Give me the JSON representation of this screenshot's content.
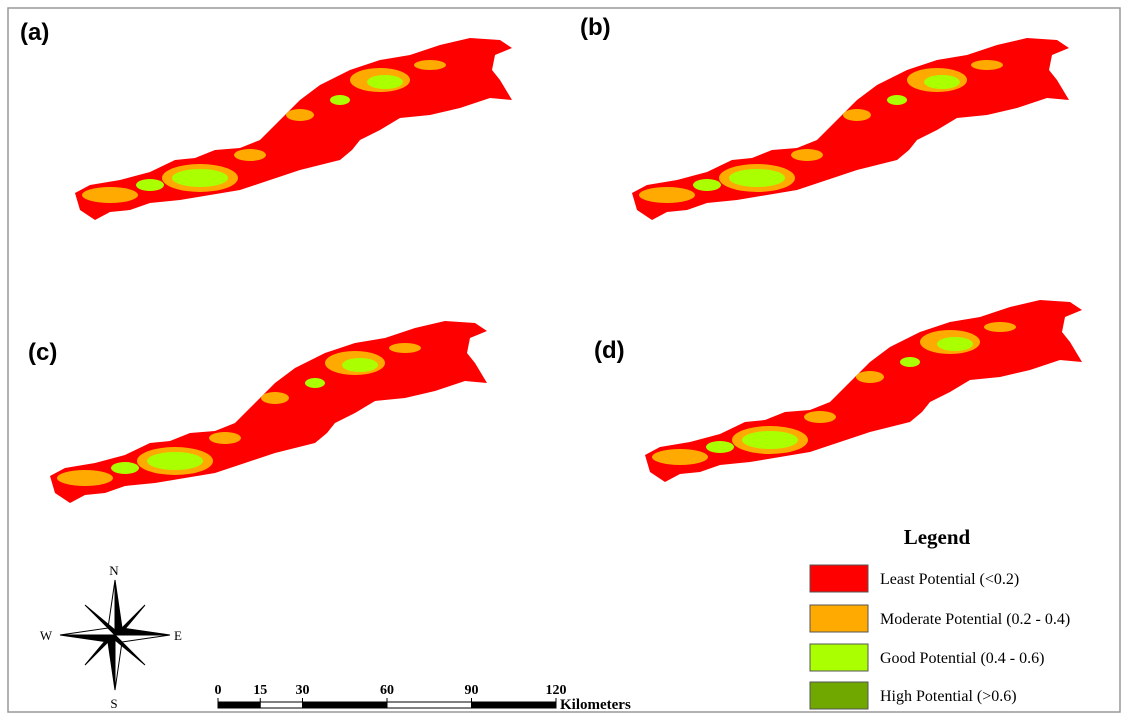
{
  "panels": [
    {
      "label": "(a)"
    },
    {
      "label": "(b)"
    },
    {
      "label": "(c)"
    },
    {
      "label": "(d)"
    }
  ],
  "legend": {
    "title": "Legend",
    "items": [
      {
        "name": "Least Potential (<0.2)",
        "color": "#ff0000"
      },
      {
        "name": "Moderate Potential (0.2 - 0.4)",
        "color": "#ffaa00"
      },
      {
        "name": "Good Potential (0.4 - 0.6)",
        "color": "#aaff00"
      },
      {
        "name": "High Potential (>0.6)",
        "color": "#70a800"
      }
    ]
  },
  "compass": {
    "north": "N",
    "south": "S",
    "east": "E",
    "west": "W"
  },
  "scale_bar": {
    "ticks": [
      0,
      15,
      30,
      60,
      90,
      120
    ],
    "unit": "Kilometers"
  }
}
